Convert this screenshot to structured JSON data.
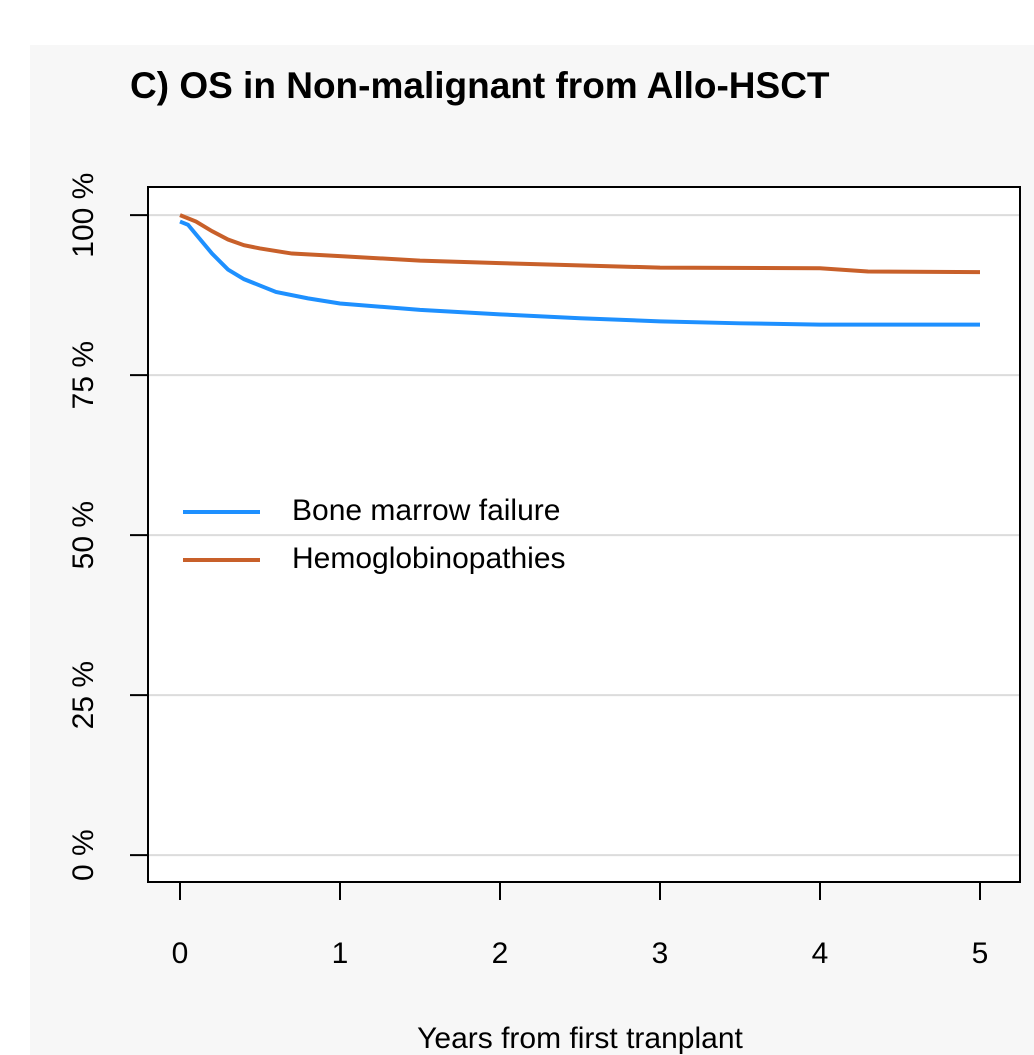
{
  "chart_data": {
    "type": "line",
    "title": "C) OS in Non-malignant from Allo-HSCT",
    "x_label": "Years from first tranplant",
    "xlim": [
      -0.2,
      5.25
    ],
    "xticks": [
      0,
      1,
      2,
      3,
      4,
      5
    ],
    "ylim": [
      -4.2,
      104.4
    ],
    "yticks": [
      {
        "value": 0,
        "label": "0 %"
      },
      {
        "value": 25,
        "label": "25 %"
      },
      {
        "value": 50,
        "label": "50 %"
      },
      {
        "value": 75,
        "label": "75 %"
      },
      {
        "value": 100,
        "label": "100 %"
      }
    ],
    "grid": true,
    "legend": "left",
    "series": [
      {
        "name": "Bone marrow failure",
        "color": "#1e90ff",
        "x": [
          0,
          0.05,
          0.1,
          0.2,
          0.3,
          0.4,
          0.5,
          0.6,
          0.8,
          1,
          1.5,
          2,
          2.5,
          3,
          3.5,
          4,
          5
        ],
        "values": [
          99,
          98.5,
          97,
          94,
          91.5,
          90,
          89,
          88,
          87,
          86.2,
          85.2,
          84.5,
          83.9,
          83.4,
          83.1,
          82.9,
          82.9
        ]
      },
      {
        "name": "Hemoglobinopathies",
        "color": "#c8602a",
        "x": [
          0,
          0.1,
          0.2,
          0.3,
          0.4,
          0.5,
          0.7,
          1,
          1.5,
          2,
          3,
          4,
          4.3,
          5
        ],
        "values": [
          100,
          99,
          97.5,
          96.2,
          95.3,
          94.8,
          94,
          93.6,
          92.9,
          92.5,
          91.8,
          91.7,
          91.2,
          91.1
        ]
      }
    ]
  }
}
